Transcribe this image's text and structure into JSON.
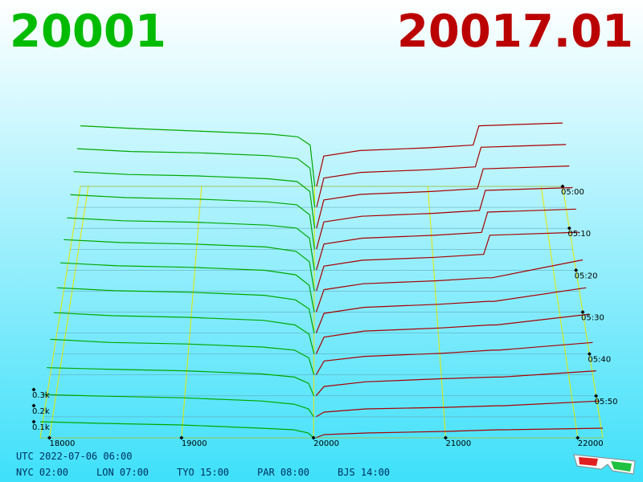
{
  "header": {
    "bid": "20001",
    "ask": "20017.01"
  },
  "chart_data": {
    "type": "depth3d",
    "bid_color": "#00a800",
    "ask_color": "#a80000",
    "grid_color": "#e8e800",
    "bid_prices": [
      17930,
      18400,
      19000,
      19600,
      19850,
      19960,
      20001
    ],
    "ask_prices": [
      20017,
      20080,
      20400,
      21000,
      21400,
      21450,
      22190
    ],
    "xlim": [
      17930,
      22190
    ],
    "xticks": [
      18000,
      19000,
      20000,
      21000,
      22000
    ],
    "ylim": [
      0,
      2
    ],
    "yticks": [
      {
        "value": 0.1,
        "label": "0.1k"
      },
      {
        "value": 0.2,
        "label": "0.2k"
      },
      {
        "value": 0.3,
        "label": "0.3k"
      }
    ],
    "tlim": [
      0,
      60
    ],
    "tticks": [
      {
        "value": 0,
        "label": "05:00"
      },
      {
        "value": 10,
        "label": "05:10"
      },
      {
        "value": 20,
        "label": "05:20"
      },
      {
        "value": 30,
        "label": "05:30"
      },
      {
        "value": 40,
        "label": "05:40"
      },
      {
        "value": 50,
        "label": "05:50"
      }
    ],
    "slices": [
      {
        "t": 0,
        "bids": [
          0.44,
          0.42,
          0.4,
          0.38,
          0.36,
          0.3,
          0
        ],
        "asks": [
          0,
          0.22,
          0.26,
          0.28,
          0.3,
          0.44,
          0.46
        ]
      },
      {
        "t": 5,
        "bids": [
          0.42,
          0.4,
          0.39,
          0.37,
          0.35,
          0.28,
          0
        ],
        "asks": [
          0,
          0.21,
          0.25,
          0.27,
          0.29,
          0.43,
          0.45
        ]
      },
      {
        "t": 10,
        "bids": [
          0.4,
          0.38,
          0.37,
          0.35,
          0.33,
          0.26,
          0
        ],
        "asks": [
          0,
          0.2,
          0.24,
          0.26,
          0.28,
          0.42,
          0.44
        ]
      },
      {
        "t": 15,
        "bids": [
          0.38,
          0.36,
          0.35,
          0.33,
          0.31,
          0.24,
          0
        ],
        "asks": [
          0,
          0.19,
          0.23,
          0.25,
          0.27,
          0.41,
          0.43
        ]
      },
      {
        "t": 20,
        "bids": [
          0.36,
          0.34,
          0.33,
          0.31,
          0.29,
          0.22,
          0
        ],
        "asks": [
          0,
          0.18,
          0.22,
          0.24,
          0.26,
          0.4,
          0.42
        ]
      },
      {
        "t": 25,
        "bids": [
          0.35,
          0.33,
          0.32,
          0.3,
          0.27,
          0.2,
          0
        ],
        "asks": [
          0,
          0.17,
          0.21,
          0.23,
          0.25,
          0.38,
          0.4
        ]
      },
      {
        "t": 30,
        "bids": [
          0.33,
          0.31,
          0.3,
          0.28,
          0.25,
          0.18,
          0
        ],
        "asks": [
          0,
          0.15,
          0.19,
          0.21,
          0.23,
          0.23,
          0.35
        ]
      },
      {
        "t": 35,
        "bids": [
          0.3,
          0.28,
          0.27,
          0.25,
          0.22,
          0.16,
          0
        ],
        "asks": [
          0,
          0.13,
          0.17,
          0.19,
          0.21,
          0.21,
          0.3
        ]
      },
      {
        "t": 40,
        "bids": [
          0.27,
          0.25,
          0.24,
          0.22,
          0.19,
          0.13,
          0
        ],
        "asks": [
          0,
          0.11,
          0.15,
          0.17,
          0.19,
          0.19,
          0.26
        ]
      },
      {
        "t": 45,
        "bids": [
          0.23,
          0.21,
          0.2,
          0.18,
          0.16,
          0.11,
          0
        ],
        "asks": [
          0,
          0.09,
          0.12,
          0.14,
          0.16,
          0.16,
          0.21
        ]
      },
      {
        "t": 50,
        "bids": [
          0.18,
          0.17,
          0.16,
          0.14,
          0.12,
          0.08,
          0
        ],
        "asks": [
          0,
          0.06,
          0.09,
          0.11,
          0.12,
          0.12,
          0.16
        ]
      },
      {
        "t": 55,
        "bids": [
          0.14,
          0.13,
          0.12,
          0.1,
          0.08,
          0.05,
          0
        ],
        "asks": [
          0,
          0.03,
          0.05,
          0.06,
          0.07,
          0.07,
          0.1
        ]
      },
      {
        "t": 60,
        "bids": [
          0.1,
          0.09,
          0.08,
          0.06,
          0.05,
          0.03,
          0
        ],
        "asks": [
          0,
          0.02,
          0.03,
          0.04,
          0.05,
          0.05,
          0.06
        ]
      }
    ]
  },
  "footer": {
    "utc": "UTC 2022-07-06 06:00",
    "clocks": [
      "NYC 02:00",
      "LON 07:00",
      "TYO 15:00",
      "PAR 08:00",
      "BJS 14:00"
    ]
  }
}
